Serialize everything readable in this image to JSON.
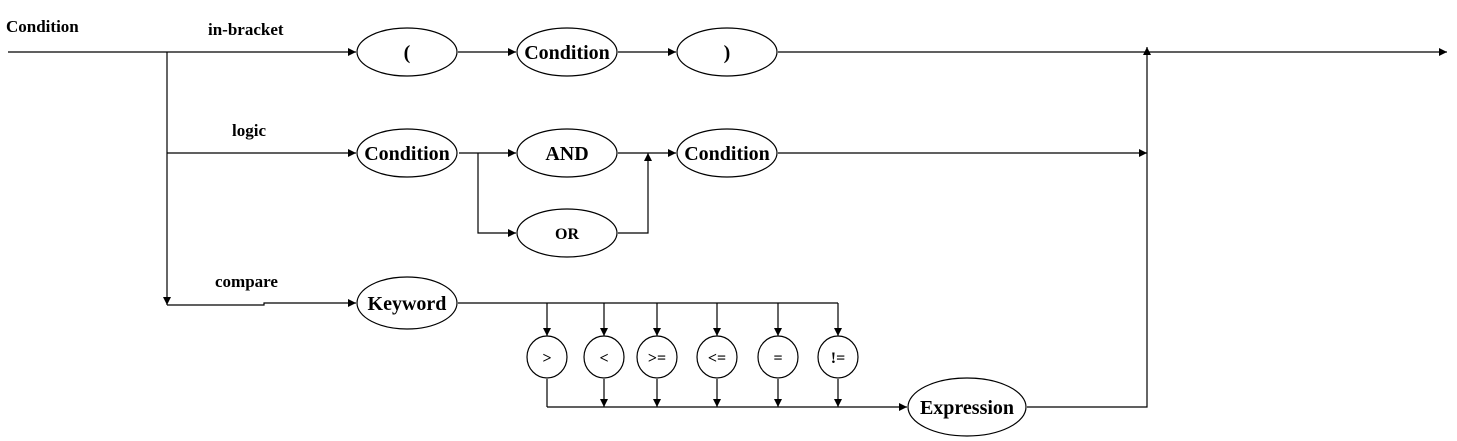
{
  "diagram": {
    "entry_label": "Condition",
    "branches": {
      "in_bracket": "in-bracket",
      "logic": "logic",
      "compare": "compare"
    },
    "nodes": {
      "open_paren": "(",
      "bracket_condition": "Condition",
      "close_paren": ")",
      "logic_condition_left": "Condition",
      "and_op": "AND",
      "or_op": "OR",
      "logic_condition_right": "Condition",
      "keyword": "Keyword",
      "op_gt": ">",
      "op_lt": "<",
      "op_gte": ">=",
      "op_lte": "<=",
      "op_eq": "=",
      "op_neq": "!=",
      "expression": "Expression"
    }
  }
}
